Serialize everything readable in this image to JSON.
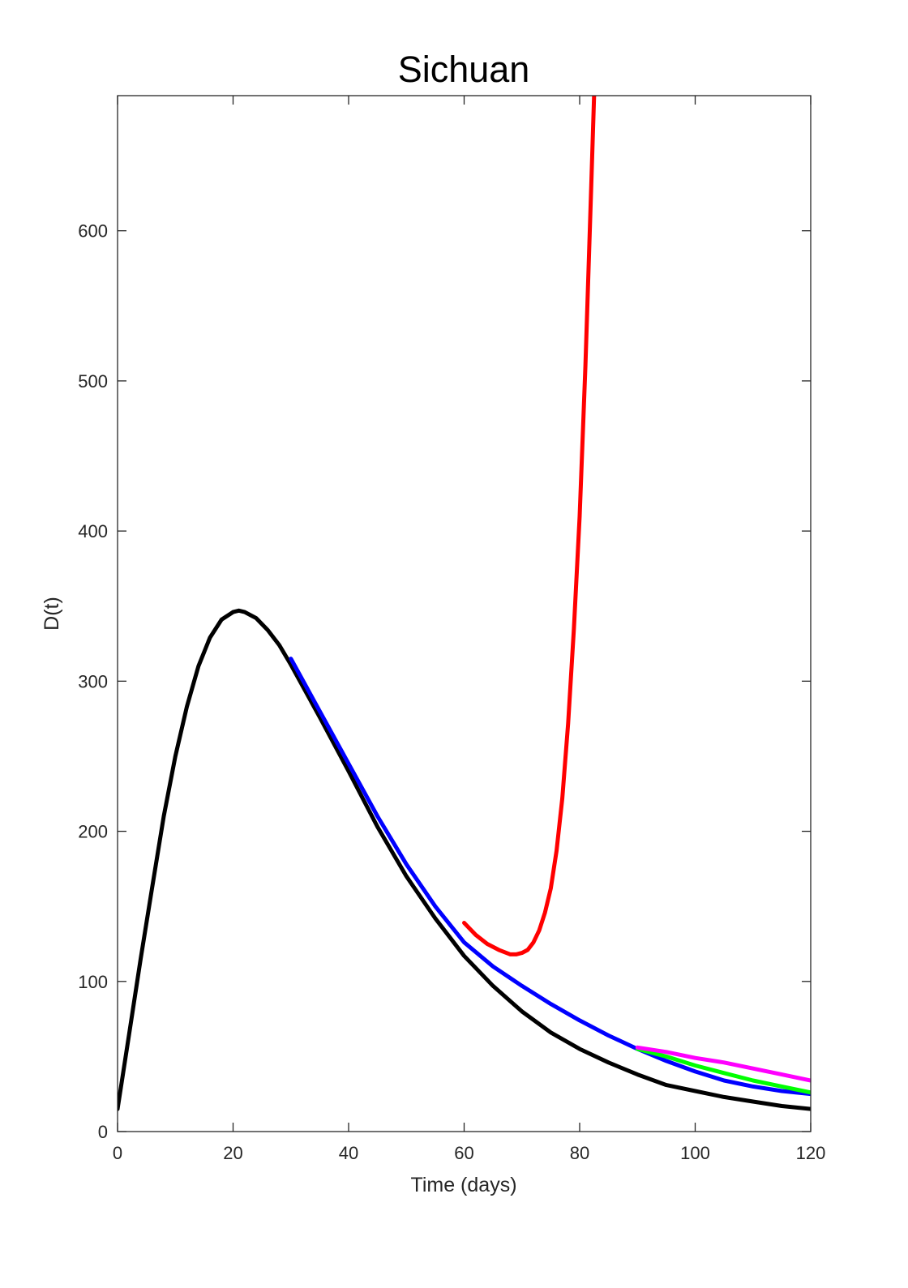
{
  "chart_data": {
    "type": "line",
    "title": "Sichuan",
    "xlabel": "Time (days)",
    "ylabel": "D(t)",
    "xlim": [
      0,
      120
    ],
    "ylim": [
      0,
      690
    ],
    "xticks": [
      0,
      20,
      40,
      60,
      80,
      100,
      120
    ],
    "yticks": [
      0,
      100,
      200,
      300,
      400,
      500,
      600
    ],
    "grid": false,
    "legend": "none",
    "series": [
      {
        "color": "#000000",
        "x": [
          0,
          2,
          4,
          6,
          8,
          10,
          12,
          14,
          16,
          18,
          20,
          21,
          22,
          24,
          26,
          28,
          30,
          35,
          40,
          45,
          50,
          55,
          60,
          65,
          70,
          75,
          80,
          85,
          90,
          95,
          100,
          105,
          110,
          115,
          120
        ],
        "y": [
          15,
          65,
          115,
          163,
          210,
          250,
          283,
          310,
          329,
          341,
          346,
          347,
          346,
          342,
          334,
          324,
          311,
          276,
          240,
          203,
          170,
          142,
          117,
          97,
          80,
          66,
          55,
          46,
          38,
          31,
          27,
          23,
          20,
          17,
          15
        ]
      },
      {
        "color": "#0000ff",
        "x": [
          30,
          35,
          40,
          45,
          50,
          55,
          60,
          65,
          70,
          75,
          80,
          85,
          90,
          95,
          100,
          105,
          110,
          115,
          120
        ],
        "y": [
          315,
          280,
          245,
          210,
          178,
          150,
          126,
          110,
          97,
          85,
          74,
          64,
          55,
          47,
          40,
          34,
          30,
          27,
          25
        ]
      },
      {
        "color": "#ff0000",
        "x": [
          60,
          62,
          64,
          66,
          68,
          69,
          70,
          71,
          72,
          73,
          74,
          75,
          76,
          77,
          78,
          79,
          80,
          81,
          82,
          82.5
        ],
        "y": [
          139,
          131,
          125,
          121,
          118,
          118,
          119,
          121,
          126,
          134,
          146,
          162,
          187,
          222,
          272,
          335,
          410,
          510,
          630,
          690
        ]
      },
      {
        "color": "#00ff00",
        "x": [
          90,
          95,
          100,
          105,
          110,
          115,
          120
        ],
        "y": [
          55,
          50,
          44,
          39,
          34,
          30,
          26
        ]
      },
      {
        "color": "#ff00ff",
        "x": [
          90,
          95,
          100,
          105,
          110,
          115,
          120
        ],
        "y": [
          56,
          53,
          49,
          46,
          42,
          38,
          34
        ]
      }
    ]
  }
}
